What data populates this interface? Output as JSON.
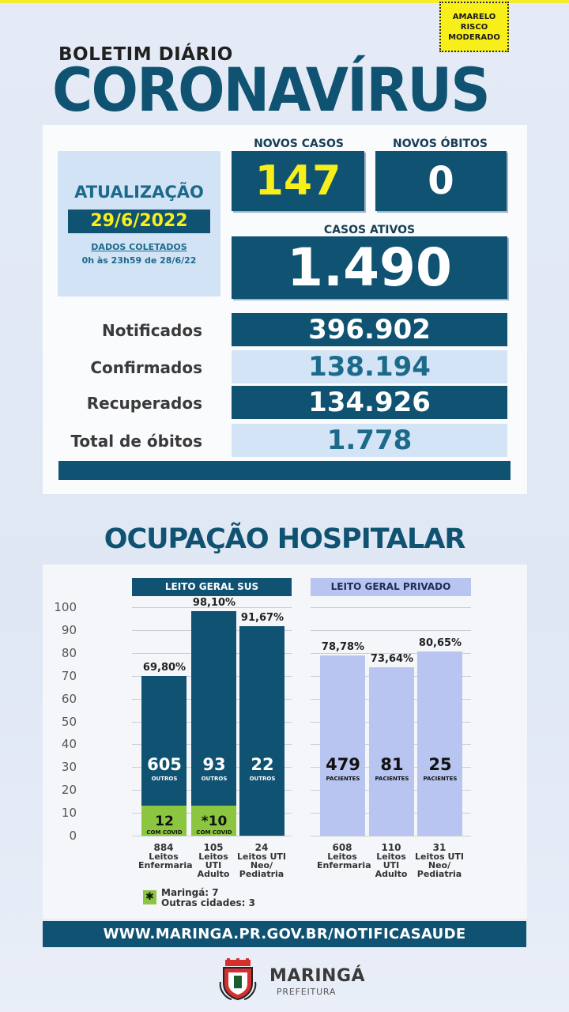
{
  "header": {
    "risk_line1": "AMARELO",
    "risk_line2": "RISCO",
    "risk_line3": "MODERADO",
    "subtitle": "BOLETIM DIÁRIO",
    "title": "CORONAVÍRUS"
  },
  "update": {
    "label": "ATUALIZAÇÃO",
    "date": "29/6/2022",
    "collected_label": "DADOS COLETADOS",
    "collected_range": "0h às 23h59 de 28/6/22"
  },
  "stats": {
    "new_cases_label": "NOVOS CASOS",
    "new_cases": "147",
    "new_deaths_label": "NOVOS ÓBITOS",
    "new_deaths": "0",
    "active_label": "CASOS ATIVOS",
    "active": "1.490",
    "rows": [
      {
        "label": "Notificados",
        "value": "396.902"
      },
      {
        "label": "Confirmados",
        "value": "138.194"
      },
      {
        "label": "Recuperados",
        "value": "134.926"
      },
      {
        "label": "Total de óbitos",
        "value": "1.778"
      }
    ]
  },
  "hospital": {
    "title": "OCUPAÇÃO HOSPITALAR",
    "sus_header": "LEITO GERAL SUS",
    "private_header": "LEITO GERAL PRIVADO",
    "legend_icon": "✱",
    "legend_line1": "Maringá: 7",
    "legend_line2": "Outras cidades: 3"
  },
  "chart_data": {
    "type": "bar",
    "ylim": [
      0,
      100
    ],
    "yticks": [
      "0",
      "10",
      "20",
      "30",
      "40",
      "50",
      "60",
      "70",
      "80",
      "90",
      "100"
    ],
    "groups": [
      {
        "name": "LEITO GERAL SUS",
        "color": "#0f5272",
        "bars": [
          {
            "value": 69.8,
            "label": "69,80%",
            "others": "605",
            "others_label": "OUTROS",
            "covid": "12",
            "covid_label": "COM COVID",
            "covid_pct": 13,
            "beds": "884",
            "category": [
              "Leitos",
              "Enfermaria"
            ]
          },
          {
            "value": 98.1,
            "label": "98,10%",
            "others": "93",
            "others_label": "OUTROS",
            "covid": "*10",
            "covid_label": "COM COVID",
            "covid_pct": 13,
            "beds": "105",
            "category": [
              "Leitos",
              "UTI Adulto"
            ]
          },
          {
            "value": 91.67,
            "label": "91,67%",
            "others": "22",
            "others_label": "OUTROS",
            "covid": "",
            "covid_label": "",
            "covid_pct": 0,
            "beds": "24",
            "category": [
              "Leitos UTI",
              "Neo/",
              "Pediatria"
            ]
          }
        ]
      },
      {
        "name": "LEITO GERAL PRIVADO",
        "color": "#b9c5f1",
        "bars": [
          {
            "value": 78.78,
            "label": "78,78%",
            "others": "479",
            "others_label": "PACIENTES",
            "beds": "608",
            "category": [
              "Leitos",
              "Enfermaria"
            ]
          },
          {
            "value": 73.64,
            "label": "73,64%",
            "others": "81",
            "others_label": "PACIENTES",
            "beds": "110",
            "category": [
              "Leitos",
              "UTI Adulto"
            ]
          },
          {
            "value": 80.65,
            "label": "80,65%",
            "others": "25",
            "others_label": "PACIENTES",
            "beds": "31",
            "category": [
              "Leitos UTI",
              "Neo/",
              "Pediatria"
            ]
          }
        ]
      }
    ],
    "colors": {
      "sus": "#0f5272",
      "private": "#b9c5f1",
      "covid": "#8cc53f"
    }
  },
  "footer": {
    "url": "WWW.MARINGA.PR.GOV.BR/NOTIFICASAUDE",
    "brand": "MARINGÁ",
    "brand_sub": "PREFEITURA",
    "crest_icon": "city-crest"
  }
}
